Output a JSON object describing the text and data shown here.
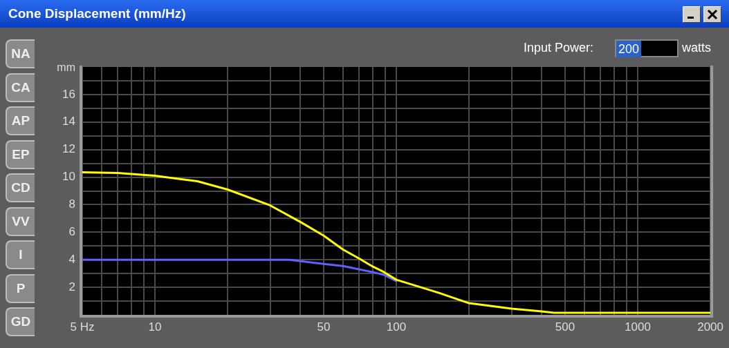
{
  "chart_data": {
    "type": "line",
    "title": "Cone Displacement (mm/Hz)",
    "ylabel": "mm",
    "annotations": [
      "Input Power:",
      "200",
      "watts",
      "NA",
      "CA",
      "AP",
      "EP",
      "CD",
      "VV",
      "I",
      "P",
      "GD"
    ],
    "series": [
      {
        "color": "#ffff00",
        "x": [
          5,
          7,
          10,
          15,
          20,
          30,
          40,
          50,
          60,
          70,
          80,
          89,
          100,
          150,
          200,
          300,
          400,
          450,
          2000
        ],
        "values": [
          10.35,
          10.3,
          10.1,
          9.7,
          9.1,
          7.95,
          6.75,
          5.75,
          4.75,
          4.1,
          3.5,
          3.1,
          2.55,
          1.6,
          0.85,
          0.45,
          0.25,
          0.15,
          0.15
        ]
      },
      {
        "color": "#6060ff",
        "x": [
          5,
          36,
          50,
          60,
          80,
          89,
          100
        ],
        "values": [
          4.0,
          4.0,
          3.7,
          3.55,
          3.1,
          2.9,
          2.45
        ]
      }
    ],
    "xlim": [
      5,
      2000
    ],
    "xticks": [
      {
        "value": 5,
        "label": "5 Hz"
      },
      {
        "value": 6,
        "label": null
      },
      {
        "value": 7,
        "label": null
      },
      {
        "value": 8,
        "label": null
      },
      {
        "value": 9,
        "label": null
      },
      10,
      {
        "value": 20,
        "label": null
      },
      {
        "value": 30,
        "label": null
      },
      {
        "value": 40,
        "label": null
      },
      50,
      {
        "value": 60,
        "label": null
      },
      {
        "value": 70,
        "label": null
      },
      {
        "value": 80,
        "label": null
      },
      {
        "value": 90,
        "label": null
      },
      100,
      {
        "value": 200,
        "label": null
      },
      {
        "value": 300,
        "label": null
      },
      {
        "value": 400,
        "label": null
      },
      500,
      {
        "value": 600,
        "label": null
      },
      {
        "value": 700,
        "label": null
      },
      {
        "value": 800,
        "label": null
      },
      {
        "value": 900,
        "label": null
      },
      1000,
      2000
    ],
    "ylim": [
      0,
      18
    ],
    "yticks": [
      {
        "value": 1,
        "label": null
      },
      2,
      {
        "value": 3,
        "label": null
      },
      4,
      {
        "value": 5,
        "label": null
      },
      6,
      {
        "value": 7,
        "label": null
      },
      8,
      {
        "value": 9,
        "label": null
      },
      10,
      {
        "value": 11,
        "label": null
      },
      12,
      {
        "value": 13,
        "label": null
      },
      14,
      {
        "value": 15,
        "label": null
      },
      16,
      {
        "value": 17,
        "label": null
      }
    ],
    "log": "x",
    "grid": true,
    "legend": false,
    "marker": "none",
    "line_style": "solid"
  }
}
